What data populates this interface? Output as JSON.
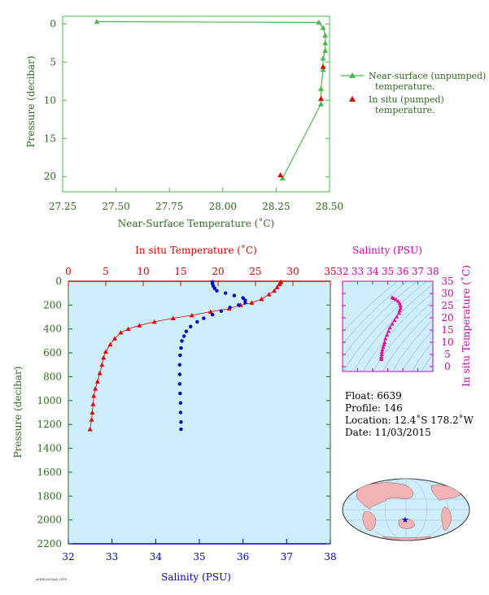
{
  "top_panel": {
    "xlabel": "Near-Surface Temperature (˚C)",
    "ylabel": "Pressure (decibar)",
    "xticks": [
      "27.25",
      "27.50",
      "27.75",
      "28.00",
      "28.25",
      "28.50"
    ],
    "yticks": [
      "0",
      "5",
      "10",
      "15",
      "20"
    ],
    "legend": {
      "line1a": "Near-surface (unpumped)",
      "line1b": "temperature.",
      "line2a": "In situ (pumped)",
      "line2b": "temperature."
    }
  },
  "bottom_panel": {
    "top_axis_label": "In situ Temperature (˚C)",
    "bottom_axis_label": "Salinity (PSU)",
    "ylabel": "Pressure (decibar)",
    "temp_ticks": [
      "0",
      "5",
      "10",
      "15",
      "20",
      "25",
      "30",
      "35"
    ],
    "sal_ticks": [
      "32",
      "33",
      "34",
      "35",
      "36",
      "37",
      "38"
    ],
    "pressure_ticks": [
      "0",
      "200",
      "400",
      "600",
      "800",
      "1000",
      "1200",
      "1400",
      "1600",
      "1800",
      "2000",
      "2200"
    ],
    "footer_code": "AOML/NOAA 2015"
  },
  "ts_panel": {
    "title": "Salinity (PSU)",
    "right_label": "In situ Temperature (˚C)",
    "sal_ticks": [
      "32",
      "33",
      "34",
      "35",
      "36",
      "37",
      "38"
    ],
    "temp_ticks": [
      "0",
      "5",
      "10",
      "15",
      "20",
      "25",
      "30",
      "35"
    ]
  },
  "info": {
    "float": "Float:  6639",
    "profile": "Profile:  146",
    "location": "Location:  12.4˚S  178.2˚W",
    "date": "Date:  11/03/2015"
  },
  "colors": {
    "green": "#4db84d",
    "red": "#e00000",
    "blue": "#0000cc",
    "magenta": "#e0109a",
    "ocean": "#cdeefa",
    "land": "#f2b4b4"
  },
  "chart_data": [
    {
      "type": "line",
      "id": "near-surface",
      "xlim": [
        27.25,
        28.5
      ],
      "ylim": [
        22,
        -1
      ],
      "series": [
        {
          "name": "Near-surface (unpumped) temperature.",
          "marker": "triangle-line",
          "points": [
            [
              27.41,
              -0.3
            ],
            [
              28.45,
              -0.2
            ],
            [
              28.47,
              0.5
            ],
            [
              28.48,
              1.5
            ],
            [
              28.48,
              2.5
            ],
            [
              28.48,
              3.5
            ],
            [
              28.47,
              4.5
            ],
            [
              28.47,
              6
            ],
            [
              28.46,
              8.5
            ],
            [
              28.46,
              10.5
            ],
            [
              28.28,
              20.2
            ]
          ]
        },
        {
          "name": "In situ (pumped) temperature.",
          "marker": "triangle",
          "points": [
            [
              28.47,
              5.6
            ],
            [
              28.46,
              9.8
            ],
            [
              28.27,
              19.8
            ]
          ]
        }
      ]
    },
    {
      "type": "line",
      "id": "profile-temperature",
      "xlim": [
        0,
        35
      ],
      "ylim": [
        2200,
        0
      ],
      "points": [
        [
          28.4,
          5
        ],
        [
          28.3,
          10
        ],
        [
          28.2,
          25
        ],
        [
          27.9,
          50
        ],
        [
          27.5,
          80
        ],
        [
          26.8,
          110
        ],
        [
          25.8,
          150
        ],
        [
          24.5,
          180
        ],
        [
          23.0,
          200
        ],
        [
          21.5,
          230
        ],
        [
          19.0,
          255
        ],
        [
          16.5,
          285
        ],
        [
          14.0,
          310
        ],
        [
          11.5,
          340
        ],
        [
          9.5,
          370
        ],
        [
          8.0,
          400
        ],
        [
          7.0,
          430
        ],
        [
          6.2,
          480
        ],
        [
          5.6,
          530
        ],
        [
          5.0,
          590
        ],
        [
          4.7,
          640
        ],
        [
          4.5,
          700
        ],
        [
          4.2,
          770
        ],
        [
          3.9,
          840
        ],
        [
          3.6,
          900
        ],
        [
          3.4,
          960
        ],
        [
          3.3,
          1030
        ],
        [
          3.2,
          1100
        ],
        [
          3.1,
          1160
        ],
        [
          2.9,
          1240
        ]
      ]
    },
    {
      "type": "scatter",
      "id": "profile-salinity",
      "xlim": [
        32,
        38
      ],
      "ylim": [
        2200,
        0
      ],
      "points": [
        [
          35.3,
          5
        ],
        [
          35.3,
          20
        ],
        [
          35.32,
          40
        ],
        [
          35.35,
          60
        ],
        [
          35.4,
          80
        ],
        [
          35.6,
          100
        ],
        [
          35.8,
          120
        ],
        [
          36.0,
          140
        ],
        [
          36.05,
          160
        ],
        [
          36.05,
          180
        ],
        [
          35.9,
          200
        ],
        [
          35.7,
          220
        ],
        [
          35.5,
          250
        ],
        [
          35.3,
          280
        ],
        [
          35.1,
          310
        ],
        [
          34.95,
          340
        ],
        [
          34.8,
          380
        ],
        [
          34.7,
          420
        ],
        [
          34.65,
          460
        ],
        [
          34.6,
          500
        ],
        [
          34.58,
          560
        ],
        [
          34.56,
          620
        ],
        [
          34.55,
          700
        ],
        [
          34.55,
          780
        ],
        [
          34.55,
          860
        ],
        [
          34.56,
          940
        ],
        [
          34.57,
          1020
        ],
        [
          34.57,
          1100
        ],
        [
          34.58,
          1180
        ],
        [
          34.58,
          1240
        ]
      ]
    },
    {
      "type": "scatter",
      "id": "ts-diagram",
      "xlim": [
        32,
        38
      ],
      "ylim": [
        -2,
        35
      ],
      "points": [
        [
          35.3,
          28.4
        ],
        [
          35.4,
          28.0
        ],
        [
          35.55,
          27.5
        ],
        [
          35.7,
          26.8
        ],
        [
          35.8,
          26.0
        ],
        [
          35.85,
          25.0
        ],
        [
          35.85,
          24.0
        ],
        [
          35.8,
          23.0
        ],
        [
          35.75,
          22.0
        ],
        [
          35.6,
          20.5
        ],
        [
          35.45,
          19.0
        ],
        [
          35.3,
          17.5
        ],
        [
          35.15,
          16.0
        ],
        [
          35.05,
          14.5
        ],
        [
          34.95,
          13.0
        ],
        [
          34.85,
          11.5
        ],
        [
          34.8,
          10.0
        ],
        [
          34.75,
          9.0
        ],
        [
          34.7,
          8.0
        ],
        [
          34.65,
          7.0
        ],
        [
          34.62,
          6.0
        ],
        [
          34.6,
          5.0
        ],
        [
          34.58,
          4.0
        ],
        [
          34.57,
          3.5
        ],
        [
          34.57,
          3.0
        ]
      ]
    }
  ]
}
